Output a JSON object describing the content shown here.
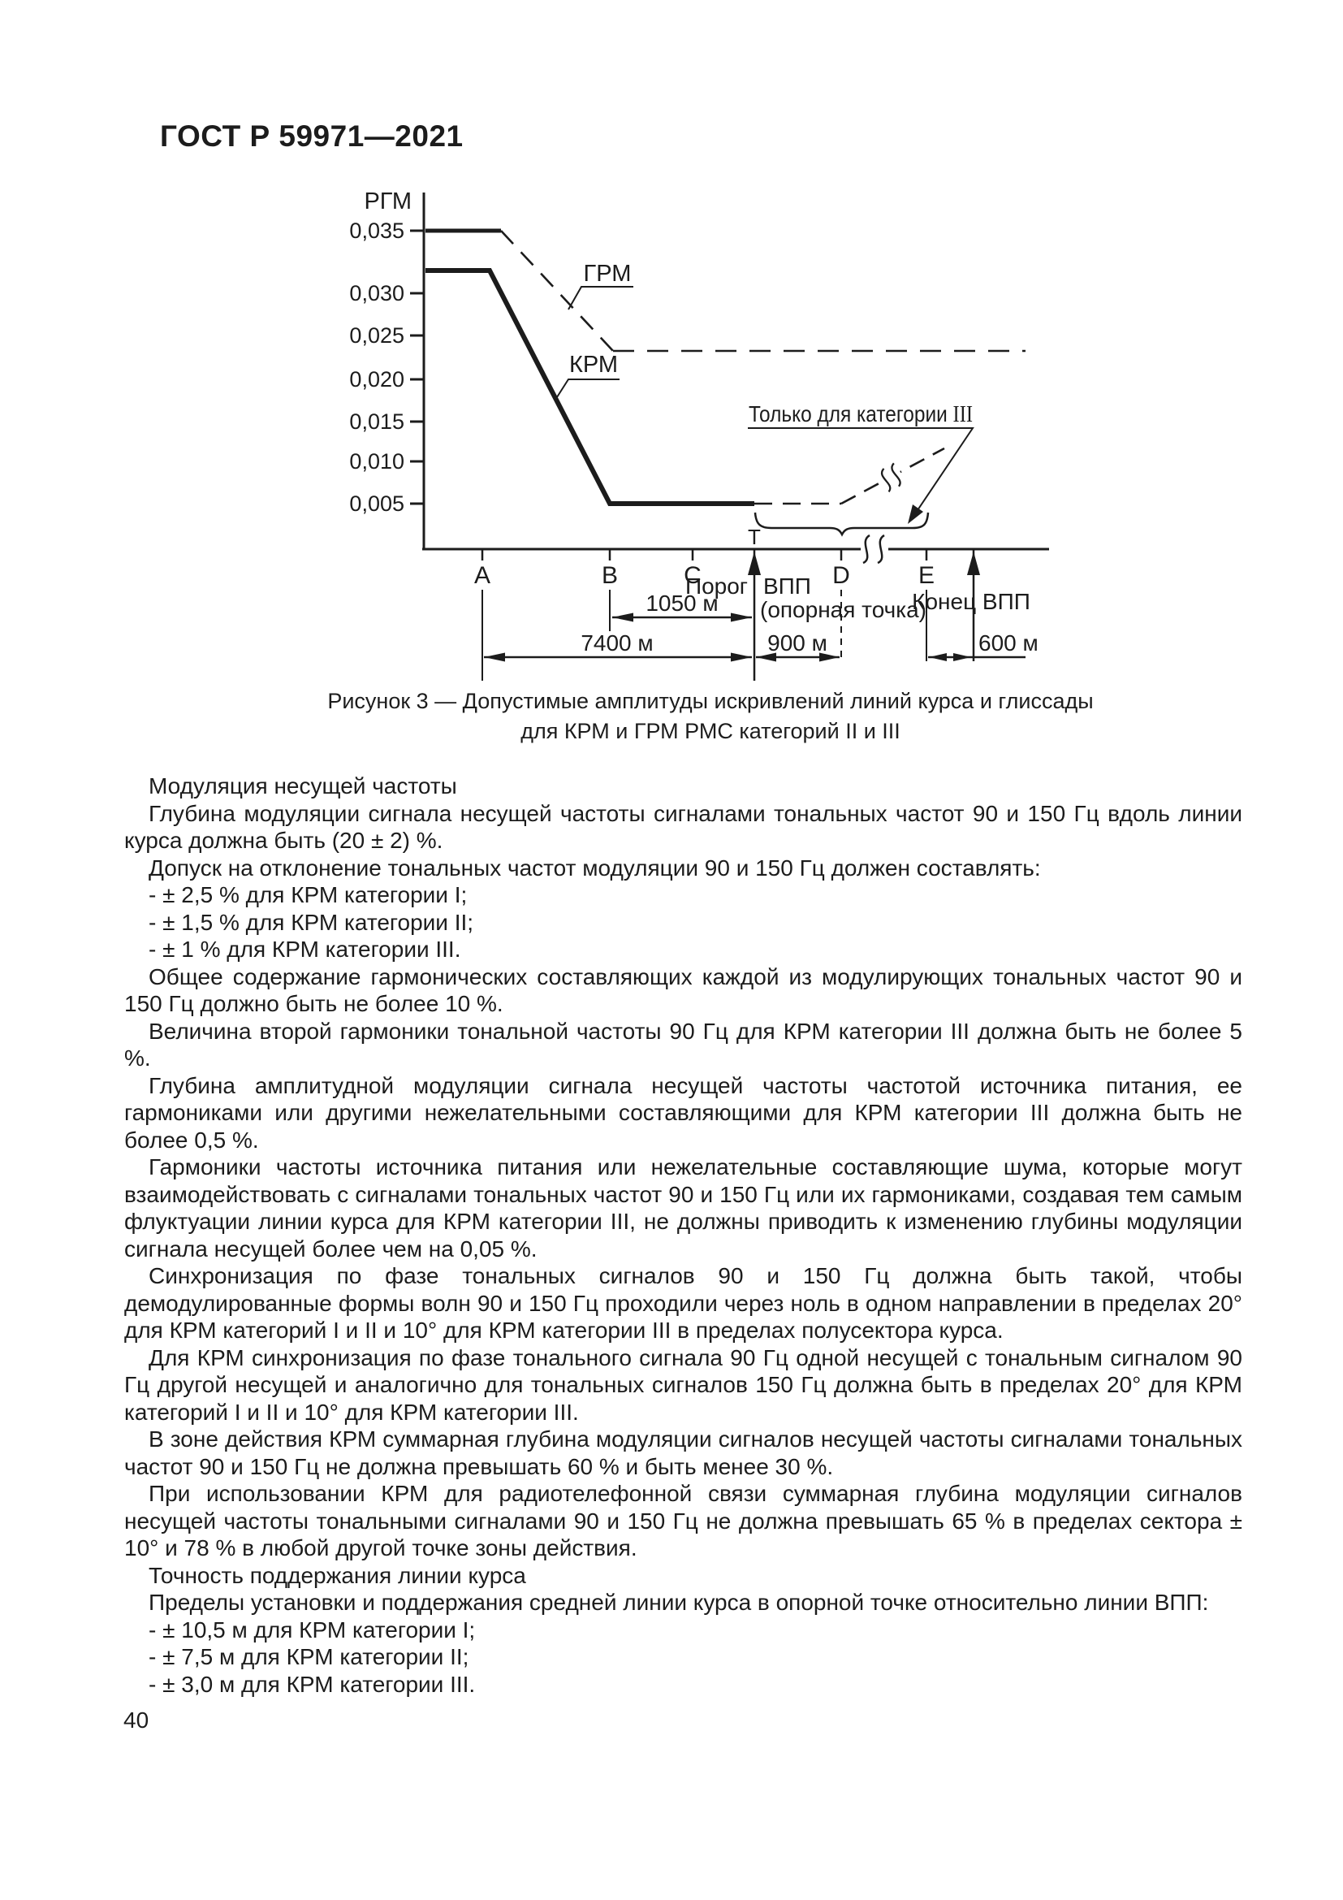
{
  "page": {
    "header": "ГОСТ Р 59971—2021",
    "number": "40"
  },
  "figure": {
    "ylabel": "РГМ",
    "y_ticks": [
      "0,035",
      "0,030",
      "0,025",
      "0,020",
      "0,015",
      "0,010",
      "0,005"
    ],
    "x_labels": [
      "A",
      "B",
      "C",
      "D",
      "E"
    ],
    "t_label": "Т",
    "series_labels": {
      "grm": "ГРМ",
      "krm": "КРМ"
    },
    "annotations": {
      "cat3_prefix": "Только для категории ",
      "cat3_roman": "III",
      "threshold_left": "Порог",
      "threshold_right": "ВПП",
      "threshold_line2": "(опорная точка)",
      "runway_end": "Конец ВПП"
    },
    "dimensions": {
      "b_to_t": "1050 м",
      "a_to_t": "7400 м",
      "t_to_d": "900 м",
      "e_to_end": "600 м"
    },
    "caption_line1": "Рисунок 3 — Допустимые амплитуды искривлений линий курса и глиссады",
    "caption_line2": "для КРМ и ГРМ РМС категорий II и III"
  },
  "chart_data": {
    "type": "line",
    "title": "Рисунок 3 — Допустимые амплитуды искривлений линий курса и глиссады для КРМ и ГРМ РМС категорий II и III",
    "ylabel": "РГМ",
    "y_ticks": [
      0.035,
      0.03,
      0.025,
      0.02,
      0.015,
      0.01,
      0.005
    ],
    "x_points": [
      "A",
      "B",
      "C",
      "Порог ВПП (опорная точка, Т)",
      "D",
      "E",
      "Конец ВПП"
    ],
    "grid": false,
    "legend_position": "inline-leader-labels",
    "series": [
      {
        "name": "ГРМ",
        "style": "толстая сплошная до ~A, затем штриховое снижение, затем штриховая горизонталь",
        "points": [
          {
            "x": "ось РГМ",
            "y": 0.035
          },
          {
            "x": "до снижения",
            "y": 0.035
          },
          {
            "x": "между B и C",
            "y": 0.023
          },
          {
            "x": "правый край",
            "y": 0.023
          }
        ]
      },
      {
        "name": "КРМ",
        "style": "толстая сплошная до ~A, сплошное снижение к B, сплошная горизонталь до T, штриховая до D, затем штриховой подъём (только для категории III)",
        "points": [
          {
            "x": "ось РГМ",
            "y": 0.0315
          },
          {
            "x": "до снижения",
            "y": 0.0315
          },
          {
            "x": "B",
            "y": 0.005
          },
          {
            "x": "Порог ВПП (Т)",
            "y": 0.005
          },
          {
            "x": "D",
            "y": 0.005
          }
        ]
      }
    ],
    "annotations": [
      "Только для категории III",
      "Порог ВПП (опорная точка)",
      "Конец ВПП",
      "Т"
    ],
    "distances": [
      {
        "from": "B",
        "to": "Порог ВПП",
        "label": "1050 м"
      },
      {
        "from": "A",
        "to": "Порог ВПП",
        "label": "7400 м"
      },
      {
        "from": "Порог ВПП",
        "to": "D",
        "label": "900 м"
      },
      {
        "from": "E",
        "to": "Конец ВПП",
        "label": "600 м"
      }
    ]
  },
  "content": {
    "paragraphs": [
      "Модуляция несущей частоты",
      "Глубина модуляции сигнала несущей частоты сигналами тональных частот 90 и 150 Гц вдоль линии курса должна быть (20 ± 2) %.",
      "Допуск на отклонение тональных частот модуляции 90 и 150 Гц должен составлять:",
      "- ± 2,5 % для КРМ категории I;",
      "- ± 1,5 % для КРМ категории II;",
      "- ± 1 % для КРМ категории III.",
      "Общее содержание гармонических составляющих каждой из модулирующих тональных частот 90 и 150 Гц должно быть не более 10 %.",
      "Величина второй гармоники тональной частоты 90 Гц для КРМ категории III должна быть не более 5 %.",
      "Глубина амплитудной модуляции сигнала несущей частоты частотой источника питания, ее гармониками или другими нежелательными составляющими для КРМ категории III должна быть не более 0,5 %.",
      "Гармоники частоты источника питания или нежелательные составляющие шума, которые могут взаимодействовать с сигналами тональных частот 90 и 150 Гц или их гармониками, создавая тем самым флуктуации линии курса для КРМ категории III, не должны приводить к изменению глубины модуляции сигнала несущей более чем на 0,05 %.",
      "Синхронизация по фазе тональных сигналов 90 и 150 Гц должна быть такой, чтобы демодулированные формы волн 90 и 150 Гц проходили через ноль в одном направлении в пределах 20° для КРМ категорий I и II и 10° для КРМ категории III в пределах полусектора курса.",
      "Для КРМ синхронизация по фазе тонального сигнала 90 Гц одной несущей с тональным сигналом 90 Гц другой несущей и аналогично для тональных сигналов 150 Гц должна быть в пределах 20° для КРМ категорий I и II и 10° для КРМ категории III.",
      "В зоне действия КРМ суммарная глубина модуляции сигналов несущей частоты сигналами тональных частот 90 и 150 Гц не должна превышать 60 % и быть менее 30 %.",
      "При использовании КРМ для радиотелефонной связи суммарная глубина модуляции сигналов несущей частоты тональными сигналами 90 и 150 Гц не должна превышать 65 % в пределах сектора ± 10° и 78 % в любой другой точке зоны действия.",
      "Точность поддержания линии курса",
      "Пределы установки и поддержания средней линии курса в опорной точке относительно линии ВПП:",
      "- ± 10,5 м для КРМ категории I;",
      "- ± 7,5 м для КРМ категории II;",
      "- ± 3,0 м для КРМ категории III."
    ]
  }
}
